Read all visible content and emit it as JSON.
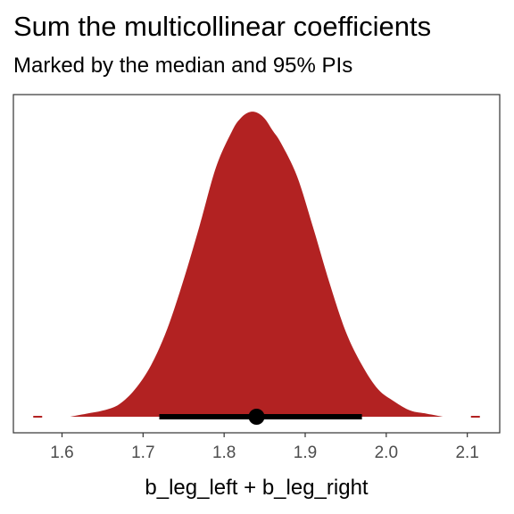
{
  "chart_data": {
    "type": "area",
    "title": "Sum the multicollinear coefficients",
    "subtitle": "Marked by the median and 95% PIs",
    "xlabel": "b_leg_left + b_leg_right",
    "ylabel": "",
    "xlim": [
      1.54,
      2.14
    ],
    "x_ticks": [
      "1.6",
      "1.7",
      "1.8",
      "1.9",
      "2.0",
      "2.1"
    ],
    "y_ticks_shown": false,
    "grid": false,
    "fill_color": "#b22222",
    "density": {
      "x": [
        1.61,
        1.63,
        1.65,
        1.67,
        1.69,
        1.71,
        1.73,
        1.75,
        1.77,
        1.79,
        1.81,
        1.82,
        1.83,
        1.84,
        1.85,
        1.86,
        1.87,
        1.89,
        1.91,
        1.93,
        1.95,
        1.97,
        1.99,
        2.01,
        2.03,
        2.05,
        2.07
      ],
      "y": [
        0.0,
        0.01,
        0.02,
        0.04,
        0.09,
        0.17,
        0.29,
        0.45,
        0.63,
        0.82,
        0.94,
        0.98,
        1.0,
        1.0,
        0.98,
        0.94,
        0.9,
        0.79,
        0.62,
        0.44,
        0.28,
        0.17,
        0.09,
        0.05,
        0.02,
        0.01,
        0.0
      ]
    },
    "outlier_ticks": [
      1.57,
      2.11
    ],
    "median": 1.84,
    "interval_95": [
      1.72,
      1.97
    ]
  }
}
